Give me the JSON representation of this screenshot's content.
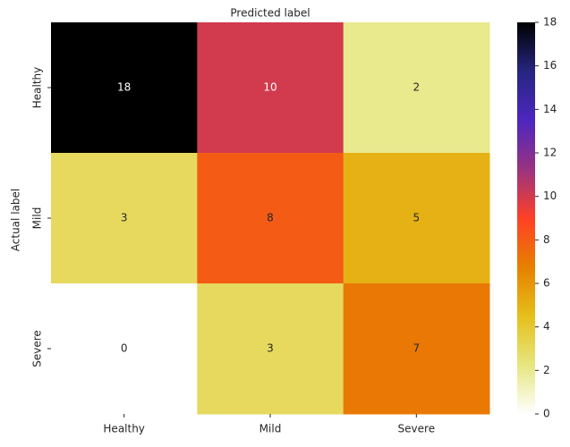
{
  "chart_data": {
    "type": "heatmap",
    "xlabel": "Predicted label",
    "ylabel": "Actual label",
    "categories": [
      "Healthy",
      "Mild",
      "Severe"
    ],
    "y_categories": [
      "Healthy",
      "Mild",
      "Severe"
    ],
    "values": [
      [
        18,
        10,
        2
      ],
      [
        3,
        8,
        5
      ],
      [
        0,
        3,
        7
      ]
    ],
    "colorscale": [
      "#ffffff",
      "#e6e680",
      "#e6bf1a",
      "#e68000",
      "#ff4026",
      "#993380",
      "#4d26bf",
      "#262680",
      "#000000"
    ],
    "clim": [
      0,
      18
    ],
    "cticks": [
      0,
      2,
      4,
      6,
      8,
      10,
      12,
      14,
      16,
      18
    ]
  }
}
